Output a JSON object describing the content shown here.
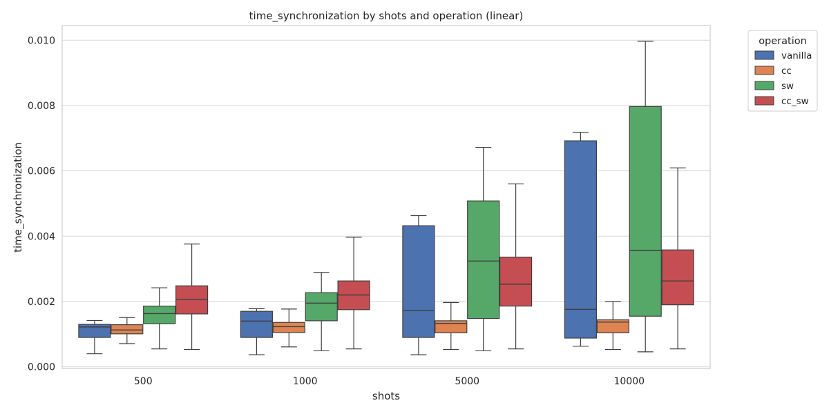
{
  "chart_data": {
    "type": "box",
    "title": "time_synchronization by shots and operation (linear)",
    "xlabel": "shots",
    "ylabel": "time_synchronization",
    "ylim": [
      -5e-05,
      0.01045
    ],
    "yticks": [
      0.0,
      0.002,
      0.004,
      0.006,
      0.008,
      0.01
    ],
    "ytick_labels": [
      "0.000",
      "0.002",
      "0.004",
      "0.006",
      "0.008",
      "0.010"
    ],
    "grid": true,
    "legend_title": "operation",
    "legend_position": "outside-top-right",
    "categories": [
      "500",
      "1000",
      "5000",
      "10000"
    ],
    "series": [
      {
        "name": "vanilla",
        "color": "#4c72b0",
        "boxes": [
          {
            "whislo": 0.0004,
            "q1": 0.0009,
            "med": 0.00122,
            "q3": 0.0013,
            "whishi": 0.00142
          },
          {
            "whislo": 0.00037,
            "q1": 0.0009,
            "med": 0.0014,
            "q3": 0.0017,
            "whishi": 0.00178
          },
          {
            "whislo": 0.00037,
            "q1": 0.0009,
            "med": 0.00172,
            "q3": 0.00432,
            "whishi": 0.00463
          },
          {
            "whislo": 0.00063,
            "q1": 0.00088,
            "med": 0.00176,
            "q3": 0.00692,
            "whishi": 0.00718
          }
        ]
      },
      {
        "name": "cc",
        "color": "#dd8452",
        "boxes": [
          {
            "whislo": 0.00071,
            "q1": 0.00101,
            "med": 0.00113,
            "q3": 0.00129,
            "whishi": 0.00151
          },
          {
            "whislo": 0.00061,
            "q1": 0.00105,
            "med": 0.00123,
            "q3": 0.00136,
            "whishi": 0.00177
          },
          {
            "whislo": 0.00053,
            "q1": 0.00104,
            "med": 0.00133,
            "q3": 0.00141,
            "whishi": 0.00197
          },
          {
            "whislo": 0.00053,
            "q1": 0.00104,
            "med": 0.00137,
            "q3": 0.00144,
            "whishi": 0.002
          }
        ]
      },
      {
        "name": "sw",
        "color": "#55a868",
        "boxes": [
          {
            "whislo": 0.00055,
            "q1": 0.00132,
            "med": 0.00163,
            "q3": 0.00186,
            "whishi": 0.00242
          },
          {
            "whislo": 0.00049,
            "q1": 0.00141,
            "med": 0.00195,
            "q3": 0.00227,
            "whishi": 0.00289
          },
          {
            "whislo": 0.00049,
            "q1": 0.00148,
            "med": 0.00324,
            "q3": 0.00508,
            "whishi": 0.00672
          },
          {
            "whislo": 0.00046,
            "q1": 0.00155,
            "med": 0.00356,
            "q3": 0.00797,
            "whishi": 0.00997
          }
        ]
      },
      {
        "name": "cc_sw",
        "color": "#c44e52",
        "boxes": [
          {
            "whislo": 0.00053,
            "q1": 0.00162,
            "med": 0.00207,
            "q3": 0.00248,
            "whishi": 0.00376
          },
          {
            "whislo": 0.00055,
            "q1": 0.00175,
            "med": 0.0022,
            "q3": 0.00263,
            "whishi": 0.00397
          },
          {
            "whislo": 0.00055,
            "q1": 0.00186,
            "med": 0.00253,
            "q3": 0.00336,
            "whishi": 0.0056
          },
          {
            "whislo": 0.00055,
            "q1": 0.0019,
            "med": 0.00263,
            "q3": 0.00358,
            "whishi": 0.00609
          }
        ]
      }
    ]
  }
}
